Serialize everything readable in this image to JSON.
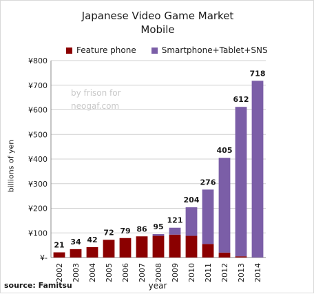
{
  "chart_data": {
    "type": "bar",
    "stacked": true,
    "title": "Japanese Video Game Market",
    "subtitle": "Mobile",
    "ylabel": "billions of yen",
    "xlabel": "year",
    "categories": [
      "2002",
      "2003",
      "2004",
      "2005",
      "2006",
      "2007",
      "2008",
      "2009",
      "2010",
      "2011",
      "2012",
      "2013",
      "2014"
    ],
    "series": [
      {
        "name": "Feature phone",
        "color": "#8b0000",
        "values": [
          21,
          34,
          42,
          72,
          79,
          86,
          88,
          93,
          88,
          55,
          20,
          5,
          0
        ]
      },
      {
        "name": "Smartphone+Tablet+SNS",
        "color": "#7b5ea7",
        "values": [
          0,
          0,
          0,
          0,
          0,
          0,
          7,
          28,
          116,
          221,
          385,
          607,
          718
        ]
      }
    ],
    "totals": [
      21,
      34,
      42,
      72,
      79,
      86,
      95,
      121,
      204,
      276,
      405,
      612,
      718
    ],
    "ylim": [
      0,
      800
    ],
    "yticks": [
      0,
      100,
      200,
      300,
      400,
      500,
      600,
      700,
      800
    ],
    "ytick_labels": [
      "¥-",
      "¥100",
      "¥200",
      "¥300",
      "¥400",
      "¥500",
      "¥600",
      "¥700",
      "¥800"
    ],
    "legend_position": "top"
  },
  "source": "source: Famitsu",
  "watermark": [
    "by frison for",
    "neogaf.com"
  ]
}
